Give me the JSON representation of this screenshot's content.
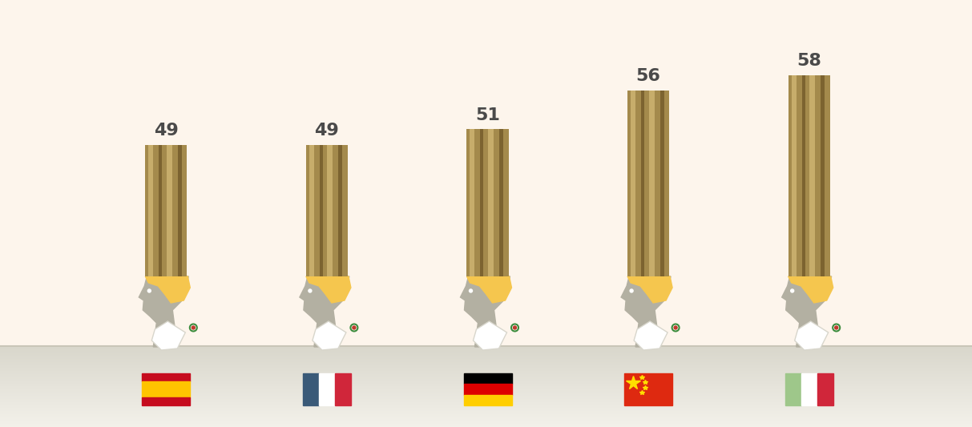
{
  "chart_data": {
    "type": "bar",
    "categories": [
      null,
      null,
      null,
      null,
      null
    ],
    "values": [
      49,
      49,
      51,
      56,
      58
    ],
    "color": "#a48a4c",
    "ylim": [
      32,
      62
    ],
    "data_labels": true,
    "tick_labels": false
  }
}
